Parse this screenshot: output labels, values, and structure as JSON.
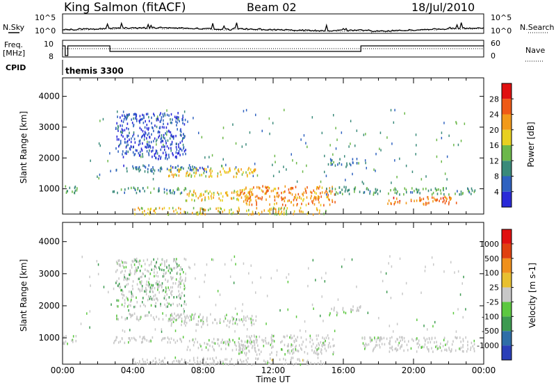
{
  "header": {
    "station": "King Salmon (fitACF)",
    "beam": "Beam 02",
    "date": "18/Jul/2010"
  },
  "strip_labels": {
    "nsky": "N.Sky",
    "nsearch": "N.Search",
    "freq_line1": "Freq.",
    "freq_line2": "[MHz]",
    "nave": "Nave",
    "cpid": "CPID",
    "cpid_value": "themis 3300"
  },
  "noise_axis": {
    "ticks": [
      "10^5",
      "10^0"
    ]
  },
  "freq_axis": {
    "ticks": [
      "10",
      "8"
    ]
  },
  "nave_axis": {
    "ticks": [
      "60",
      "0"
    ]
  },
  "chart_data": [
    {
      "type": "heatmap",
      "title": "",
      "xlabel": "",
      "ylabel": "Slant Range [km]",
      "xlim_hours": [
        0,
        24
      ],
      "ylim": [
        180,
        4600
      ],
      "yticks": [
        "1000",
        "2000",
        "3000",
        "4000"
      ],
      "colorbar": {
        "label": "Power [dB]",
        "ticks": [
          "4",
          "8",
          "12",
          "16",
          "20",
          "24",
          "28"
        ],
        "range": [
          0,
          32
        ],
        "colors": [
          "#2a2ad8",
          "#2f62c0",
          "#3a8a7a",
          "#6cb84a",
          "#e8d020",
          "#f29a1a",
          "#ef5a16",
          "#e01010"
        ]
      },
      "regions": [
        {
          "t": [
            0.0,
            0.8
          ],
          "r": [
            850,
            1150
          ],
          "level": 0.35
        },
        {
          "t": [
            3.0,
            8.3
          ],
          "r": [
            1580,
            1800
          ],
          "level": 0.2
        },
        {
          "t": [
            6.0,
            11.0
          ],
          "r": [
            1420,
            1720
          ],
          "level": 0.6
        },
        {
          "t": [
            2.8,
            7.0
          ],
          "r": [
            880,
            1080
          ],
          "level": 0.3
        },
        {
          "t": [
            7.0,
            11.0
          ],
          "r": [
            650,
            1000
          ],
          "level": 0.62
        },
        {
          "t": [
            10.0,
            15.5
          ],
          "r": [
            500,
            1120
          ],
          "level": 0.75
        },
        {
          "t": [
            15.0,
            17.0
          ],
          "r": [
            850,
            1100
          ],
          "level": 0.3
        },
        {
          "t": [
            15.0,
            17.0
          ],
          "r": [
            1800,
            2020
          ],
          "level": 0.25
        },
        {
          "t": [
            17.0,
            23.5
          ],
          "r": [
            850,
            1060
          ],
          "level": 0.35
        },
        {
          "t": [
            18.5,
            22.5
          ],
          "r": [
            520,
            780
          ],
          "level": 0.8
        },
        {
          "t": [
            4.0,
            15.0
          ],
          "r": [
            200,
            420
          ],
          "level": 0.6
        },
        {
          "t": [
            3.0,
            7.0
          ],
          "r": [
            2000,
            3500
          ],
          "level": 0.08
        }
      ]
    },
    {
      "type": "heatmap",
      "title": "",
      "xlabel": "Time UT",
      "ylabel": "Slant Range [km]",
      "xlim_hours": [
        0,
        24
      ],
      "ylim": [
        180,
        4600
      ],
      "xticks": [
        "00:00",
        "04:00",
        "08:00",
        "12:00",
        "16:00",
        "20:00",
        "00:00"
      ],
      "yticks": [
        "1000",
        "2000",
        "3000",
        "4000"
      ],
      "colorbar": {
        "label": "Velocity [m s-1]",
        "ticks": [
          "1000",
          "500",
          "100",
          "25",
          "-25",
          "-100",
          "-500",
          "-1000"
        ],
        "colors": [
          "#2a3fb8",
          "#2e6ea8",
          "#3c9a50",
          "#5cc840",
          "#c8c8c8",
          "#e8c030",
          "#f0901c",
          "#e04010",
          "#e01010"
        ]
      },
      "regions": [
        {
          "t": [
            0.0,
            0.8
          ],
          "r": [
            850,
            1150
          ],
          "level": 0.45
        },
        {
          "t": [
            3.0,
            8.3
          ],
          "r": [
            1580,
            1800
          ],
          "level": 0.45
        },
        {
          "t": [
            6.0,
            11.0
          ],
          "r": [
            1420,
            1720
          ],
          "level": 0.45
        },
        {
          "t": [
            2.8,
            7.0
          ],
          "r": [
            880,
            1080
          ],
          "level": 0.45
        },
        {
          "t": [
            7.0,
            11.0
          ],
          "r": [
            650,
            1000
          ],
          "level": 0.45
        },
        {
          "t": [
            10.0,
            15.5
          ],
          "r": [
            500,
            1120
          ],
          "level": 0.45
        },
        {
          "t": [
            15.0,
            17.0
          ],
          "r": [
            1800,
            2020
          ],
          "level": 0.45
        },
        {
          "t": [
            17.0,
            23.5
          ],
          "r": [
            600,
            1060
          ],
          "level": 0.45
        },
        {
          "t": [
            4.0,
            15.0
          ],
          "r": [
            200,
            420
          ],
          "level": 0.5
        },
        {
          "t": [
            3.0,
            7.0
          ],
          "r": [
            2000,
            3500
          ],
          "level": 0.3
        }
      ]
    }
  ]
}
